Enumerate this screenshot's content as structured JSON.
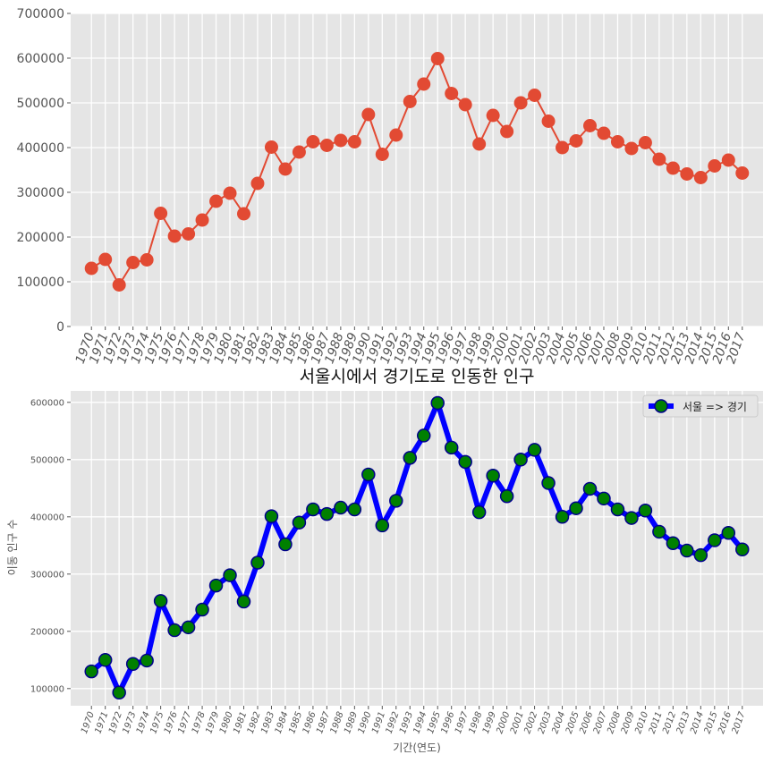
{
  "chart_data": [
    {
      "type": "line",
      "title": "",
      "xlabel": "",
      "ylabel": "",
      "ylim": [
        0,
        700000
      ],
      "yticks": [
        0,
        100000,
        200000,
        300000,
        400000,
        500000,
        600000,
        700000
      ],
      "grid": true,
      "color": "#E24A33",
      "categories": [
        "1970",
        "1971",
        "1972",
        "1973",
        "1974",
        "1975",
        "1976",
        "1977",
        "1978",
        "1979",
        "1980",
        "1981",
        "1982",
        "1983",
        "1984",
        "1985",
        "1986",
        "1987",
        "1988",
        "1989",
        "1990",
        "1991",
        "1992",
        "1993",
        "1994",
        "1995",
        "1996",
        "1997",
        "1998",
        "1999",
        "2000",
        "2001",
        "2002",
        "2003",
        "2004",
        "2005",
        "2006",
        "2007",
        "2008",
        "2009",
        "2010",
        "2011",
        "2012",
        "2013",
        "2014",
        "2015",
        "2016",
        "2017"
      ],
      "values": [
        130000,
        150000,
        93000,
        143000,
        149000,
        253000,
        202000,
        207000,
        238000,
        280000,
        298000,
        252000,
        320000,
        401000,
        352000,
        390000,
        413000,
        405000,
        416000,
        413000,
        474000,
        385000,
        428000,
        503000,
        542000,
        599000,
        521000,
        496000,
        408000,
        472000,
        436000,
        500000,
        517000,
        459000,
        400000,
        415000,
        449000,
        432000,
        413000,
        398000,
        411000,
        374000,
        354000,
        341000,
        333000,
        359000,
        372000,
        343000
      ]
    },
    {
      "type": "line",
      "title": "서울시에서  경기도로 인동한 인구",
      "xlabel": "기간(연도)",
      "ylabel": "이동 인구 수",
      "ylim": [
        70000,
        620000
      ],
      "yticks": [
        100000,
        200000,
        300000,
        400000,
        500000,
        600000
      ],
      "grid": true,
      "legend": "top-right",
      "line_color": "#0000FF",
      "marker_face_color": "#008000",
      "marker_edge_color": "#00008B",
      "series": [
        {
          "name": "서울 => 경기",
          "values": [
            130000,
            150000,
            93000,
            143000,
            149000,
            253000,
            202000,
            207000,
            238000,
            280000,
            298000,
            252000,
            320000,
            401000,
            352000,
            390000,
            413000,
            405000,
            416000,
            413000,
            474000,
            385000,
            428000,
            503000,
            542000,
            599000,
            521000,
            496000,
            408000,
            472000,
            436000,
            500000,
            517000,
            459000,
            400000,
            415000,
            449000,
            432000,
            413000,
            398000,
            411000,
            374000,
            354000,
            341000,
            333000,
            359000,
            372000,
            343000
          ]
        }
      ],
      "categories": [
        "1970",
        "1971",
        "1972",
        "1973",
        "1974",
        "1975",
        "1976",
        "1977",
        "1978",
        "1979",
        "1980",
        "1981",
        "1982",
        "1983",
        "1984",
        "1985",
        "1986",
        "1987",
        "1988",
        "1989",
        "1990",
        "1991",
        "1992",
        "1993",
        "1994",
        "1995",
        "1996",
        "1997",
        "1998",
        "1999",
        "2000",
        "2001",
        "2002",
        "2003",
        "2004",
        "2005",
        "2006",
        "2007",
        "2008",
        "2009",
        "2010",
        "2011",
        "2012",
        "2013",
        "2014",
        "2015",
        "2016",
        "2017"
      ]
    }
  ]
}
